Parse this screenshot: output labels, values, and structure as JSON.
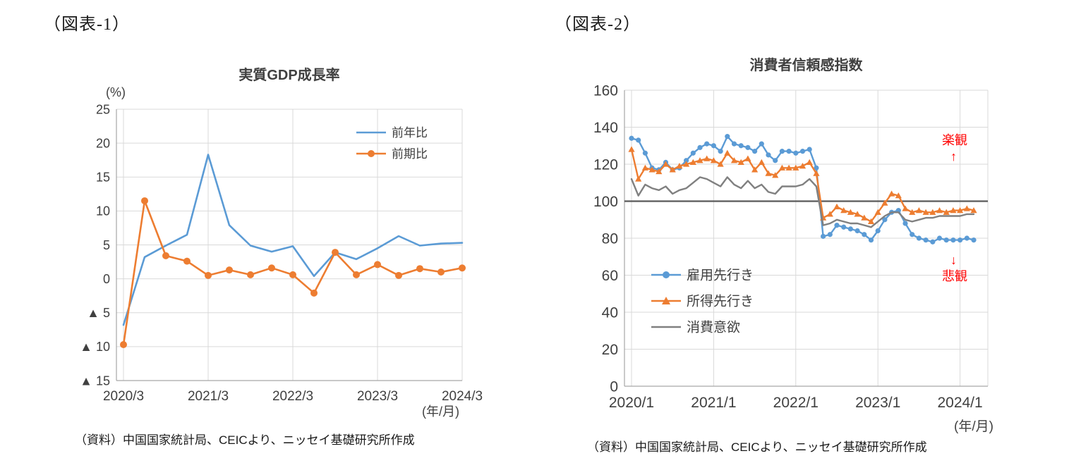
{
  "fig1": {
    "label": "（図表-1）",
    "title": "実質GDP成長率",
    "y_unit": "(%)",
    "x_unit": "(年/月)",
    "source": "（資料）中国国家統計局、CEICより、ニッセイ基礎研究所作成"
  },
  "fig2": {
    "label": "（図表-2）",
    "title": "消費者信頼感指数",
    "x_unit": "(年/月)",
    "source": "（資料）中国国家統計局、CEICより、ニッセイ基礎研究所作成",
    "annotations": {
      "optimism": "楽観",
      "up_arrow": "↑",
      "down_arrow": "↓",
      "pessimism": "悲観",
      "color": "#FF0000"
    }
  },
  "colors": {
    "blue": "#5B9BD5",
    "orange": "#ED7D31",
    "gray": "#808080",
    "reference": "#595959",
    "grid": "#D9D9D9",
    "axis": "#A6A6A6",
    "text": "#404040"
  },
  "chart_data": [
    {
      "type": "line",
      "title": "実質GDP成長率",
      "ylabel": "(%)",
      "xlabel": "(年/月)",
      "ylim": [
        -15,
        25
      ],
      "ytick_step": 5,
      "ytick_labels": [
        "25",
        "20",
        "15",
        "10",
        "5",
        "0",
        "▲ 5",
        "▲ 10",
        "▲ 15"
      ],
      "xtick_positions": [
        0,
        4,
        8,
        12,
        16
      ],
      "xtick_labels": [
        "2020/3",
        "2021/3",
        "2022/3",
        "2023/3",
        "2024/3"
      ],
      "x_period": "quarterly 2020/3 - 2024/3",
      "grid": true,
      "legend_position": "top-right",
      "series": [
        {
          "name": "前年比",
          "color": "#5B9BD5",
          "marker": "none",
          "values": [
            -6.8,
            3.2,
            4.9,
            6.5,
            18.3,
            7.9,
            4.9,
            4.0,
            4.8,
            0.4,
            3.9,
            2.9,
            4.5,
            6.3,
            4.9,
            5.2,
            5.3
          ]
        },
        {
          "name": "前期比",
          "color": "#ED7D31",
          "marker": "circle",
          "values": [
            -9.7,
            11.5,
            3.4,
            2.6,
            0.5,
            1.3,
            0.6,
            1.6,
            0.6,
            -2.1,
            3.9,
            0.6,
            2.1,
            0.5,
            1.5,
            1.0,
            1.6
          ]
        }
      ]
    },
    {
      "type": "line",
      "title": "消費者信頼感指数",
      "xlabel": "(年/月)",
      "ylim": [
        0,
        160
      ],
      "ytick_step": 20,
      "ytick_labels": [
        "160",
        "140",
        "120",
        "100",
        "80",
        "60",
        "40",
        "20",
        "0"
      ],
      "xtick_positions": [
        0,
        12,
        24,
        36,
        48
      ],
      "xtick_labels": [
        "2020/1",
        "2021/1",
        "2022/1",
        "2023/1",
        "2024/1"
      ],
      "x_period": "monthly 2020/1 - 2024/3",
      "grid": true,
      "ref_line": {
        "value": 100,
        "color": "#595959"
      },
      "legend_position": "inside-left",
      "series": [
        {
          "name": "雇用先行き",
          "color": "#5B9BD5",
          "marker": "circle",
          "values": [
            134,
            133,
            126,
            118,
            117,
            121,
            117,
            118,
            122,
            126,
            129,
            131,
            130,
            127,
            135,
            131,
            130,
            129,
            127,
            131,
            125,
            122,
            127,
            127,
            126,
            127,
            128,
            118,
            81,
            82,
            87,
            86,
            85,
            84,
            82,
            79,
            84,
            90,
            94,
            95,
            88,
            82,
            80,
            79,
            78,
            80,
            79,
            79,
            79,
            80,
            79
          ]
        },
        {
          "name": "所得先行き",
          "color": "#ED7D31",
          "marker": "triangle",
          "values": [
            128,
            112,
            118,
            117,
            116,
            120,
            117,
            119,
            120,
            121,
            122,
            123,
            122,
            120,
            126,
            122,
            121,
            123,
            117,
            121,
            115,
            114,
            118,
            118,
            118,
            119,
            121,
            115,
            91,
            93,
            97,
            95,
            94,
            93,
            91,
            89,
            94,
            99,
            104,
            103,
            96,
            94,
            95,
            94,
            94,
            95,
            94,
            95,
            95,
            96,
            95
          ]
        },
        {
          "name": "消費意欲",
          "color": "#808080",
          "marker": "none",
          "values": [
            112,
            103,
            109,
            107,
            106,
            108,
            104,
            106,
            107,
            110,
            113,
            112,
            110,
            108,
            113,
            109,
            107,
            111,
            107,
            109,
            105,
            104,
            108,
            108,
            108,
            109,
            112,
            108,
            87,
            88,
            90,
            89,
            88,
            88,
            87,
            86,
            89,
            92,
            94,
            94,
            90,
            89,
            90,
            91,
            91,
            92,
            92,
            92,
            92,
            93,
            93
          ]
        }
      ]
    }
  ]
}
